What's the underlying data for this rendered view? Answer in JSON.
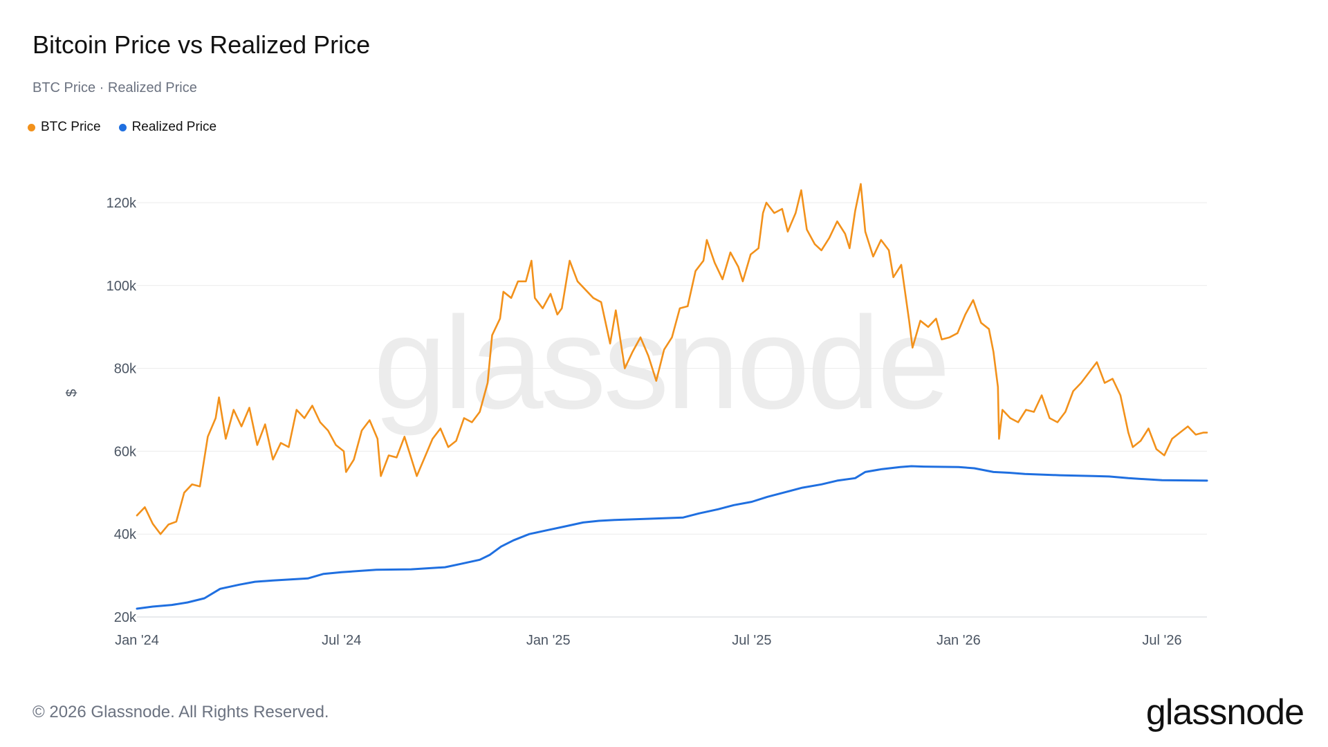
{
  "header": {
    "title": "Bitcoin Price vs Realized Price",
    "subtitle": "BTC Price · Realized Price"
  },
  "legend": [
    {
      "label": "BTC Price",
      "color": "#f2911b"
    },
    {
      "label": "Realized Price",
      "color": "#1f6fe0"
    }
  ],
  "footer": {
    "copyright": "© 2026 Glassnode. All Rights Reserved.",
    "logo": "glassnode"
  },
  "watermark": "glassnode",
  "chart_data": {
    "type": "line",
    "title": "Bitcoin Price vs Realized Price",
    "ylabel": "$",
    "xlabel": "",
    "ylim": [
      20000,
      125000
    ],
    "xlim": [
      "2024-01-01",
      "2026-08-10"
    ],
    "x_ticks": [
      {
        "date": "2024-01-01",
        "label": "Jan '24"
      },
      {
        "date": "2024-07-01",
        "label": "Jul '24"
      },
      {
        "date": "2025-01-01",
        "label": "Jan '25"
      },
      {
        "date": "2025-07-01",
        "label": "Jul '25"
      },
      {
        "date": "2026-01-01",
        "label": "Jan '26"
      },
      {
        "date": "2026-07-01",
        "label": "Jul '26"
      }
    ],
    "y_ticks": [
      {
        "value": 20000,
        "label": "20k"
      },
      {
        "value": 40000,
        "label": "40k"
      },
      {
        "value": 60000,
        "label": "60k"
      },
      {
        "value": 80000,
        "label": "80k"
      },
      {
        "value": 100000,
        "label": "100k"
      },
      {
        "value": 120000,
        "label": "120k"
      }
    ],
    "grid": true,
    "legend_position": "top-left",
    "series": [
      {
        "name": "BTC Price",
        "color": "#f2911b",
        "points": [
          [
            "2024-01-01",
            44500
          ],
          [
            "2024-01-08",
            46500
          ],
          [
            "2024-01-15",
            42500
          ],
          [
            "2024-01-22",
            40000
          ],
          [
            "2024-01-29",
            42300
          ],
          [
            "2024-02-05",
            43000
          ],
          [
            "2024-02-12",
            50000
          ],
          [
            "2024-02-19",
            52000
          ],
          [
            "2024-02-26",
            51500
          ],
          [
            "2024-03-04",
            63500
          ],
          [
            "2024-03-11",
            68000
          ],
          [
            "2024-03-14",
            73000
          ],
          [
            "2024-03-20",
            63000
          ],
          [
            "2024-03-27",
            70000
          ],
          [
            "2024-04-03",
            66000
          ],
          [
            "2024-04-10",
            70500
          ],
          [
            "2024-04-17",
            61500
          ],
          [
            "2024-04-24",
            66500
          ],
          [
            "2024-05-01",
            58000
          ],
          [
            "2024-05-08",
            62000
          ],
          [
            "2024-05-15",
            61000
          ],
          [
            "2024-05-22",
            70000
          ],
          [
            "2024-05-29",
            68000
          ],
          [
            "2024-06-05",
            71000
          ],
          [
            "2024-06-12",
            67000
          ],
          [
            "2024-06-19",
            65000
          ],
          [
            "2024-06-26",
            61500
          ],
          [
            "2024-07-03",
            60000
          ],
          [
            "2024-07-05",
            55000
          ],
          [
            "2024-07-12",
            58000
          ],
          [
            "2024-07-19",
            65000
          ],
          [
            "2024-07-26",
            67500
          ],
          [
            "2024-08-02",
            63000
          ],
          [
            "2024-08-05",
            54000
          ],
          [
            "2024-08-12",
            59000
          ],
          [
            "2024-08-19",
            58500
          ],
          [
            "2024-08-26",
            63500
          ],
          [
            "2024-09-02",
            57500
          ],
          [
            "2024-09-06",
            54000
          ],
          [
            "2024-09-13",
            58500
          ],
          [
            "2024-09-20",
            63000
          ],
          [
            "2024-09-27",
            65500
          ],
          [
            "2024-10-04",
            61000
          ],
          [
            "2024-10-11",
            62500
          ],
          [
            "2024-10-18",
            68000
          ],
          [
            "2024-10-25",
            67000
          ],
          [
            "2024-11-01",
            69500
          ],
          [
            "2024-11-08",
            76500
          ],
          [
            "2024-11-12",
            88000
          ],
          [
            "2024-11-19",
            92000
          ],
          [
            "2024-11-22",
            98500
          ],
          [
            "2024-11-29",
            97000
          ],
          [
            "2024-12-05",
            101000
          ],
          [
            "2024-12-12",
            101000
          ],
          [
            "2024-12-17",
            106000
          ],
          [
            "2024-12-20",
            97000
          ],
          [
            "2024-12-27",
            94500
          ],
          [
            "2025-01-03",
            98000
          ],
          [
            "2025-01-09",
            93000
          ],
          [
            "2025-01-13",
            94500
          ],
          [
            "2025-01-20",
            106000
          ],
          [
            "2025-01-27",
            101000
          ],
          [
            "2025-02-03",
            99000
          ],
          [
            "2025-02-10",
            97000
          ],
          [
            "2025-02-17",
            96000
          ],
          [
            "2025-02-25",
            86000
          ],
          [
            "2025-03-02",
            94000
          ],
          [
            "2025-03-10",
            80000
          ],
          [
            "2025-03-17",
            84000
          ],
          [
            "2025-03-24",
            87500
          ],
          [
            "2025-03-31",
            83000
          ],
          [
            "2025-04-07",
            77000
          ],
          [
            "2025-04-14",
            84500
          ],
          [
            "2025-04-21",
            87500
          ],
          [
            "2025-04-28",
            94500
          ],
          [
            "2025-05-05",
            95000
          ],
          [
            "2025-05-12",
            103500
          ],
          [
            "2025-05-19",
            106000
          ],
          [
            "2025-05-22",
            111000
          ],
          [
            "2025-05-29",
            105500
          ],
          [
            "2025-06-05",
            101500
          ],
          [
            "2025-06-12",
            108000
          ],
          [
            "2025-06-19",
            104500
          ],
          [
            "2025-06-23",
            101000
          ],
          [
            "2025-06-30",
            107500
          ],
          [
            "2025-07-07",
            109000
          ],
          [
            "2025-07-11",
            117500
          ],
          [
            "2025-07-14",
            120000
          ],
          [
            "2025-07-21",
            117500
          ],
          [
            "2025-07-28",
            118500
          ],
          [
            "2025-08-02",
            113000
          ],
          [
            "2025-08-09",
            117500
          ],
          [
            "2025-08-14",
            123000
          ],
          [
            "2025-08-19",
            113500
          ],
          [
            "2025-08-26",
            110000
          ],
          [
            "2025-09-01",
            108500
          ],
          [
            "2025-09-08",
            111500
          ],
          [
            "2025-09-15",
            115500
          ],
          [
            "2025-09-22",
            112500
          ],
          [
            "2025-09-26",
            109000
          ],
          [
            "2025-10-01",
            118000
          ],
          [
            "2025-10-06",
            124500
          ],
          [
            "2025-10-10",
            113000
          ],
          [
            "2025-10-17",
            107000
          ],
          [
            "2025-10-24",
            111000
          ],
          [
            "2025-10-31",
            108500
          ],
          [
            "2025-11-04",
            102000
          ],
          [
            "2025-11-11",
            105000
          ],
          [
            "2025-11-18",
            91500
          ],
          [
            "2025-11-21",
            85000
          ],
          [
            "2025-11-28",
            91500
          ],
          [
            "2025-12-05",
            90000
          ],
          [
            "2025-12-12",
            92000
          ],
          [
            "2025-12-17",
            87000
          ],
          [
            "2025-12-24",
            87500
          ],
          [
            "2025-12-31",
            88500
          ],
          [
            "2026-01-07",
            93000
          ],
          [
            "2026-01-14",
            96500
          ],
          [
            "2026-01-21",
            91000
          ],
          [
            "2026-01-28",
            89500
          ],
          [
            "2026-02-01",
            84000
          ],
          [
            "2026-02-05",
            75500
          ],
          [
            "2026-02-06",
            63000
          ],
          [
            "2026-02-09",
            70000
          ],
          [
            "2026-02-16",
            68000
          ],
          [
            "2026-02-23",
            67000
          ],
          [
            "2026-03-02",
            70000
          ],
          [
            "2026-03-09",
            69500
          ],
          [
            "2026-03-16",
            73500
          ],
          [
            "2026-03-23",
            68000
          ],
          [
            "2026-03-30",
            67000
          ],
          [
            "2026-04-06",
            69500
          ],
          [
            "2026-04-13",
            74500
          ],
          [
            "2026-04-20",
            76500
          ],
          [
            "2026-04-27",
            79000
          ],
          [
            "2026-05-04",
            81500
          ],
          [
            "2026-05-11",
            76500
          ],
          [
            "2026-05-18",
            77500
          ],
          [
            "2026-05-25",
            73500
          ],
          [
            "2026-06-01",
            64500
          ],
          [
            "2026-06-05",
            61000
          ],
          [
            "2026-06-12",
            62500
          ],
          [
            "2026-06-19",
            65500
          ],
          [
            "2026-06-26",
            60500
          ],
          [
            "2026-07-03",
            59000
          ],
          [
            "2026-07-10",
            63000
          ],
          [
            "2026-07-17",
            64500
          ],
          [
            "2026-07-24",
            66000
          ],
          [
            "2026-07-31",
            64000
          ],
          [
            "2026-08-07",
            64500
          ],
          [
            "2026-08-10",
            64500
          ]
        ]
      },
      {
        "name": "Realized Price",
        "color": "#1f6fe0",
        "points": [
          [
            "2024-01-01",
            22000
          ],
          [
            "2024-01-15",
            22500
          ],
          [
            "2024-02-01",
            22900
          ],
          [
            "2024-02-15",
            23500
          ],
          [
            "2024-03-01",
            24500
          ],
          [
            "2024-03-15",
            26800
          ],
          [
            "2024-04-01",
            27800
          ],
          [
            "2024-04-15",
            28500
          ],
          [
            "2024-05-01",
            28800
          ],
          [
            "2024-06-01",
            29300
          ],
          [
            "2024-06-15",
            30400
          ],
          [
            "2024-07-01",
            30800
          ],
          [
            "2024-08-01",
            31400
          ],
          [
            "2024-09-01",
            31500
          ],
          [
            "2024-10-01",
            32000
          ],
          [
            "2024-10-15",
            32800
          ],
          [
            "2024-11-01",
            33800
          ],
          [
            "2024-11-10",
            35000
          ],
          [
            "2024-11-20",
            37000
          ],
          [
            "2024-12-01",
            38500
          ],
          [
            "2024-12-15",
            40000
          ],
          [
            "2025-01-01",
            41000
          ],
          [
            "2025-01-15",
            41800
          ],
          [
            "2025-02-01",
            42800
          ],
          [
            "2025-02-15",
            43200
          ],
          [
            "2025-03-01",
            43400
          ],
          [
            "2025-04-01",
            43700
          ],
          [
            "2025-05-01",
            44000
          ],
          [
            "2025-05-15",
            45000
          ],
          [
            "2025-06-01",
            46000
          ],
          [
            "2025-06-15",
            47000
          ],
          [
            "2025-07-01",
            47800
          ],
          [
            "2025-07-15",
            49000
          ],
          [
            "2025-08-01",
            50200
          ],
          [
            "2025-08-15",
            51200
          ],
          [
            "2025-09-01",
            52000
          ],
          [
            "2025-09-15",
            52900
          ],
          [
            "2025-10-01",
            53500
          ],
          [
            "2025-10-10",
            55000
          ],
          [
            "2025-10-25",
            55700
          ],
          [
            "2025-11-10",
            56200
          ],
          [
            "2025-11-20",
            56400
          ],
          [
            "2025-12-01",
            56300
          ],
          [
            "2026-01-01",
            56200
          ],
          [
            "2026-01-15",
            55900
          ],
          [
            "2026-02-01",
            55000
          ],
          [
            "2026-02-15",
            54800
          ],
          [
            "2026-03-01",
            54500
          ],
          [
            "2026-04-01",
            54200
          ],
          [
            "2026-05-01",
            54000
          ],
          [
            "2026-05-15",
            53900
          ],
          [
            "2026-06-01",
            53500
          ],
          [
            "2026-07-01",
            53000
          ],
          [
            "2026-08-10",
            52900
          ]
        ]
      }
    ]
  }
}
